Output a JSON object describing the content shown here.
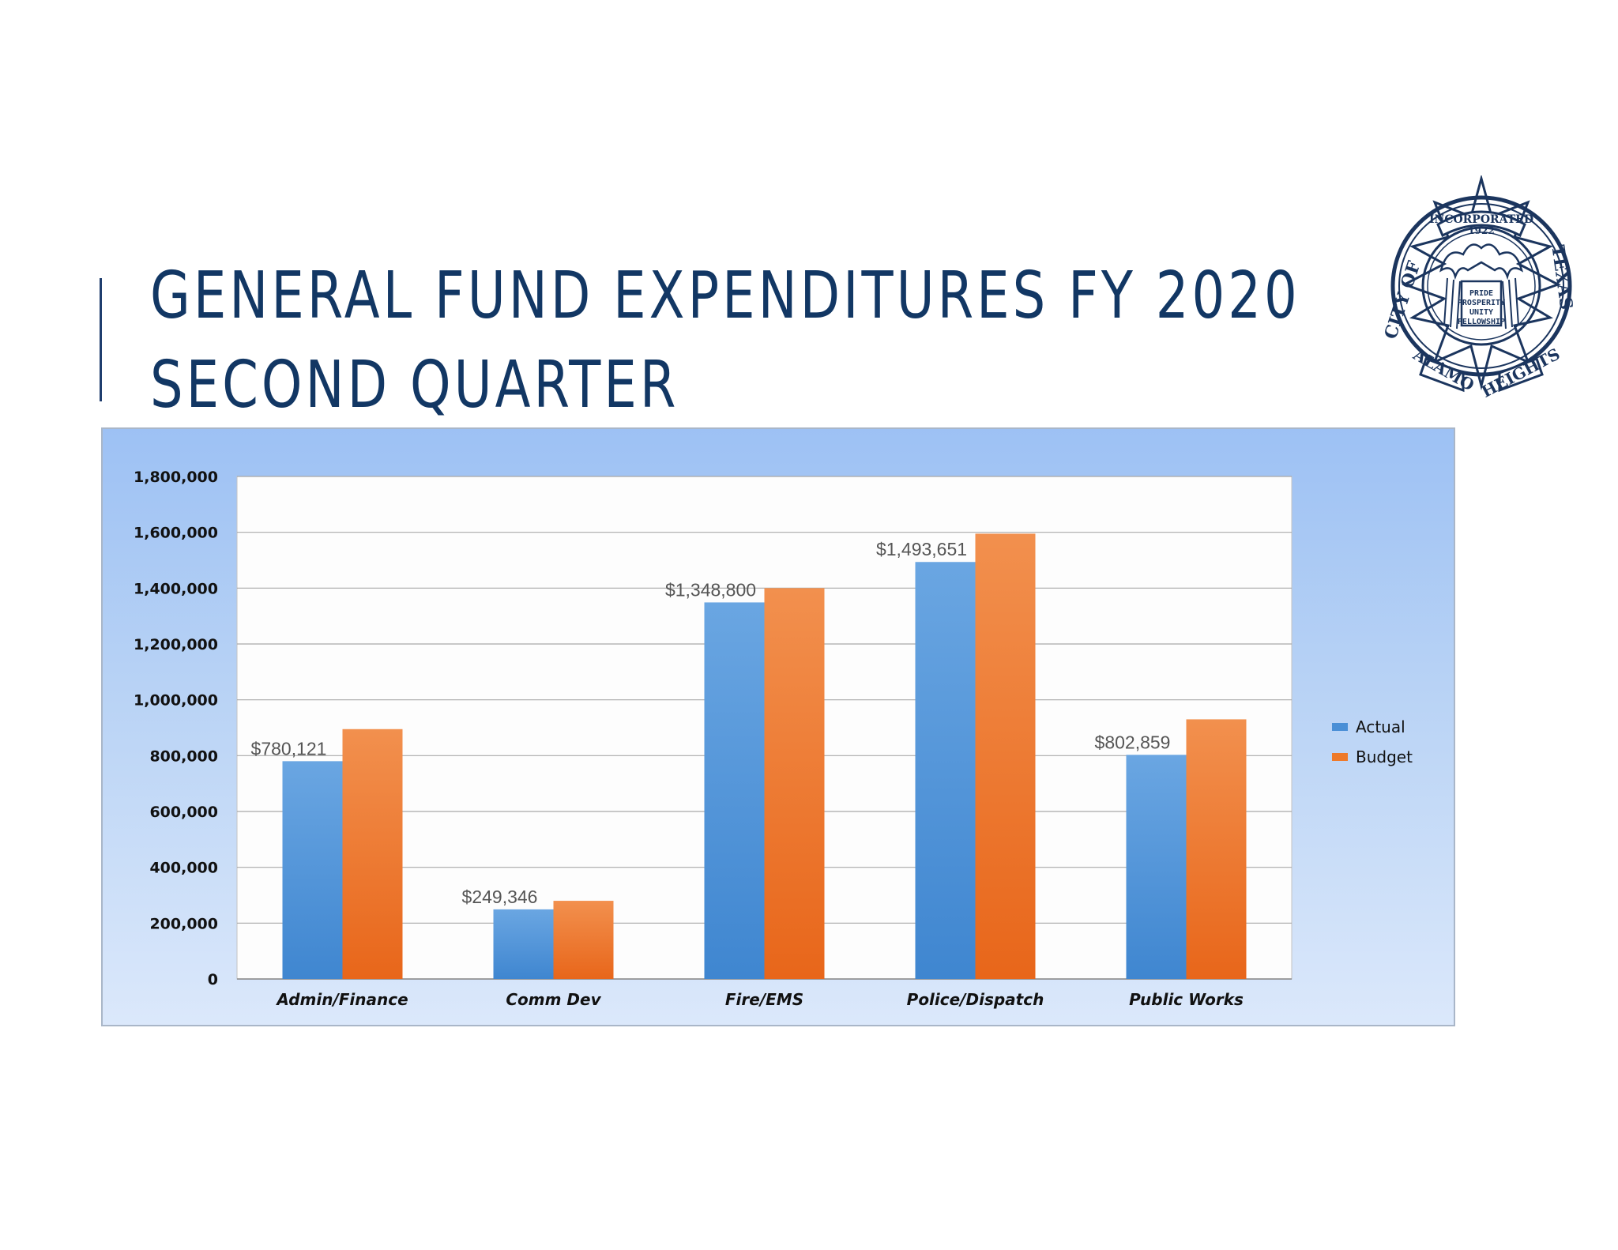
{
  "slide": {
    "title_line1": "GENERAL FUND EXPENDITURES FY 2020",
    "title_line2": "SECOND QUARTER"
  },
  "seal": {
    "top_text": "INCORPORATED",
    "year": "1922",
    "left_text": "CITY OF",
    "bottom_left_text": "ALAMO",
    "bottom_right_text": "HEIGHTS",
    "right_text": "TEXAS",
    "motto": [
      "PRIDE",
      "PROSPERITY",
      "UNITY",
      "FELLOWSHIP"
    ],
    "color": "#1b355e"
  },
  "chart_data": {
    "type": "bar",
    "categories": [
      "Admin/Finance",
      "Comm Dev",
      "Fire/EMS",
      "Police/Dispatch",
      "Public Works"
    ],
    "series": [
      {
        "name": "Actual",
        "color": "#4a8fd6",
        "values": [
          780121,
          249346,
          1348800,
          1493651,
          802859
        ],
        "data_labels": [
          "$780,121",
          "$249,346",
          "$1,348,800",
          "$1,493,651",
          "$802,859"
        ]
      },
      {
        "name": "Budget",
        "color": "#ee7a2a",
        "values": [
          895000,
          280000,
          1400000,
          1595000,
          930000
        ]
      }
    ],
    "ylim": [
      0,
      1800000
    ],
    "y_ticks": [
      0,
      200000,
      400000,
      600000,
      800000,
      1000000,
      1200000,
      1400000,
      1600000,
      1800000
    ],
    "y_tick_labels": [
      "0",
      "200,000",
      "400,000",
      "600,000",
      "800,000",
      "1,000,000",
      "1,200,000",
      "1,400,000",
      "1,600,000",
      "1,800,000"
    ],
    "grid": true,
    "legend_position": "right"
  }
}
